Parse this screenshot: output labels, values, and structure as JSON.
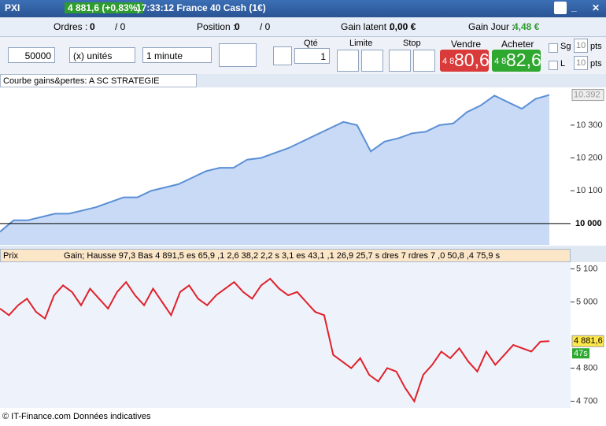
{
  "titlebar": {
    "app": "PXI",
    "quote": "4 881,6 (+0,83%)",
    "time_name": "17:33:12 France 40 Cash (1€)"
  },
  "status": {
    "orders_label": "Ordres :",
    "orders": "0",
    "orders2": "/ 0",
    "position_label": "Position :",
    "position": "0",
    "position2": "/ 0",
    "gain_latent_label": "Gain latent :",
    "gain_latent": "0,00 €",
    "gain_jour_label": "Gain Jour :",
    "gain_jour": "4,48 €"
  },
  "order_bar": {
    "amount": "50000",
    "unit": "(x) unités",
    "interval": "1 minute",
    "qty_label": "Qté",
    "qty": "1",
    "limit_label": "Limite",
    "stop_label": "Stop",
    "sell_label": "Vendre",
    "sell_prefix": "4 8",
    "sell_price": "80,6",
    "buy_label": "Acheter",
    "buy_prefix": "4 8",
    "buy_price": "82,6",
    "sg_label": "Sg",
    "sg_value": "10",
    "l_label": "L",
    "l_value": "10",
    "pts": "pts"
  },
  "equity_panel": {
    "title": "Courbe gains&pertes: A SC STRATEGIE",
    "ylim": [
      9935,
      10415
    ],
    "yticks": [
      {
        "value": 10100,
        "label": "10 100"
      },
      {
        "value": 10200,
        "label": "10 200"
      },
      {
        "value": 10300,
        "label": "10 300"
      }
    ],
    "base_tick": {
      "value": 10000,
      "label": "10 000"
    },
    "last_label": {
      "value": 10392,
      "label": "10.392"
    },
    "values": [
      9975,
      10010,
      10010,
      10020,
      10030,
      10030,
      10040,
      10050,
      10065,
      10080,
      10080,
      10100,
      10110,
      10120,
      10140,
      10160,
      10170,
      10170,
      10195,
      10200,
      10215,
      10230,
      10250,
      10270,
      10290,
      10310,
      10300,
      10220,
      10250,
      10260,
      10275,
      10280,
      10300,
      10305,
      10340,
      10360,
      10390,
      10370,
      10350,
      10380,
      10392
    ]
  },
  "price_panel": {
    "title": "Prix",
    "legend": "Gain; Hausse 97,3 Bas 4 891,5 es 65,9 ,1 2,6 38,2 2,2 s 3,1 es 43,1 ,1 26,9 25,7 s dres 7 rdres 7 ,0 50,8 ,4 75,9 s",
    "ylim": [
      4680,
      5120
    ],
    "yticks": [
      {
        "value": 4700,
        "label": "4 700"
      },
      {
        "value": 4800,
        "label": "4 800"
      },
      {
        "value": 5000,
        "label": "5 000"
      },
      {
        "value": 5100,
        "label": "5 100"
      }
    ],
    "last_label": {
      "value": 4881.6,
      "label": "4 881,6"
    },
    "countdown": "47s",
    "values": [
      4980,
      4960,
      4990,
      5010,
      4970,
      4950,
      5020,
      5050,
      5030,
      4990,
      5040,
      5010,
      4980,
      5030,
      5060,
      5020,
      4990,
      5040,
      5000,
      4960,
      5030,
      5050,
      5010,
      4990,
      5020,
      5040,
      5060,
      5030,
      5010,
      5050,
      5070,
      5040,
      5020,
      5030,
      5000,
      4970,
      4960,
      4840,
      4820,
      4800,
      4830,
      4780,
      4760,
      4800,
      4790,
      4740,
      4700,
      4780,
      4810,
      4850,
      4830,
      4860,
      4820,
      4790,
      4850,
      4810,
      4840,
      4870,
      4860,
      4850,
      4880,
      4881.6
    ]
  },
  "footer": "© IT-Finance.com Données indicatives"
}
